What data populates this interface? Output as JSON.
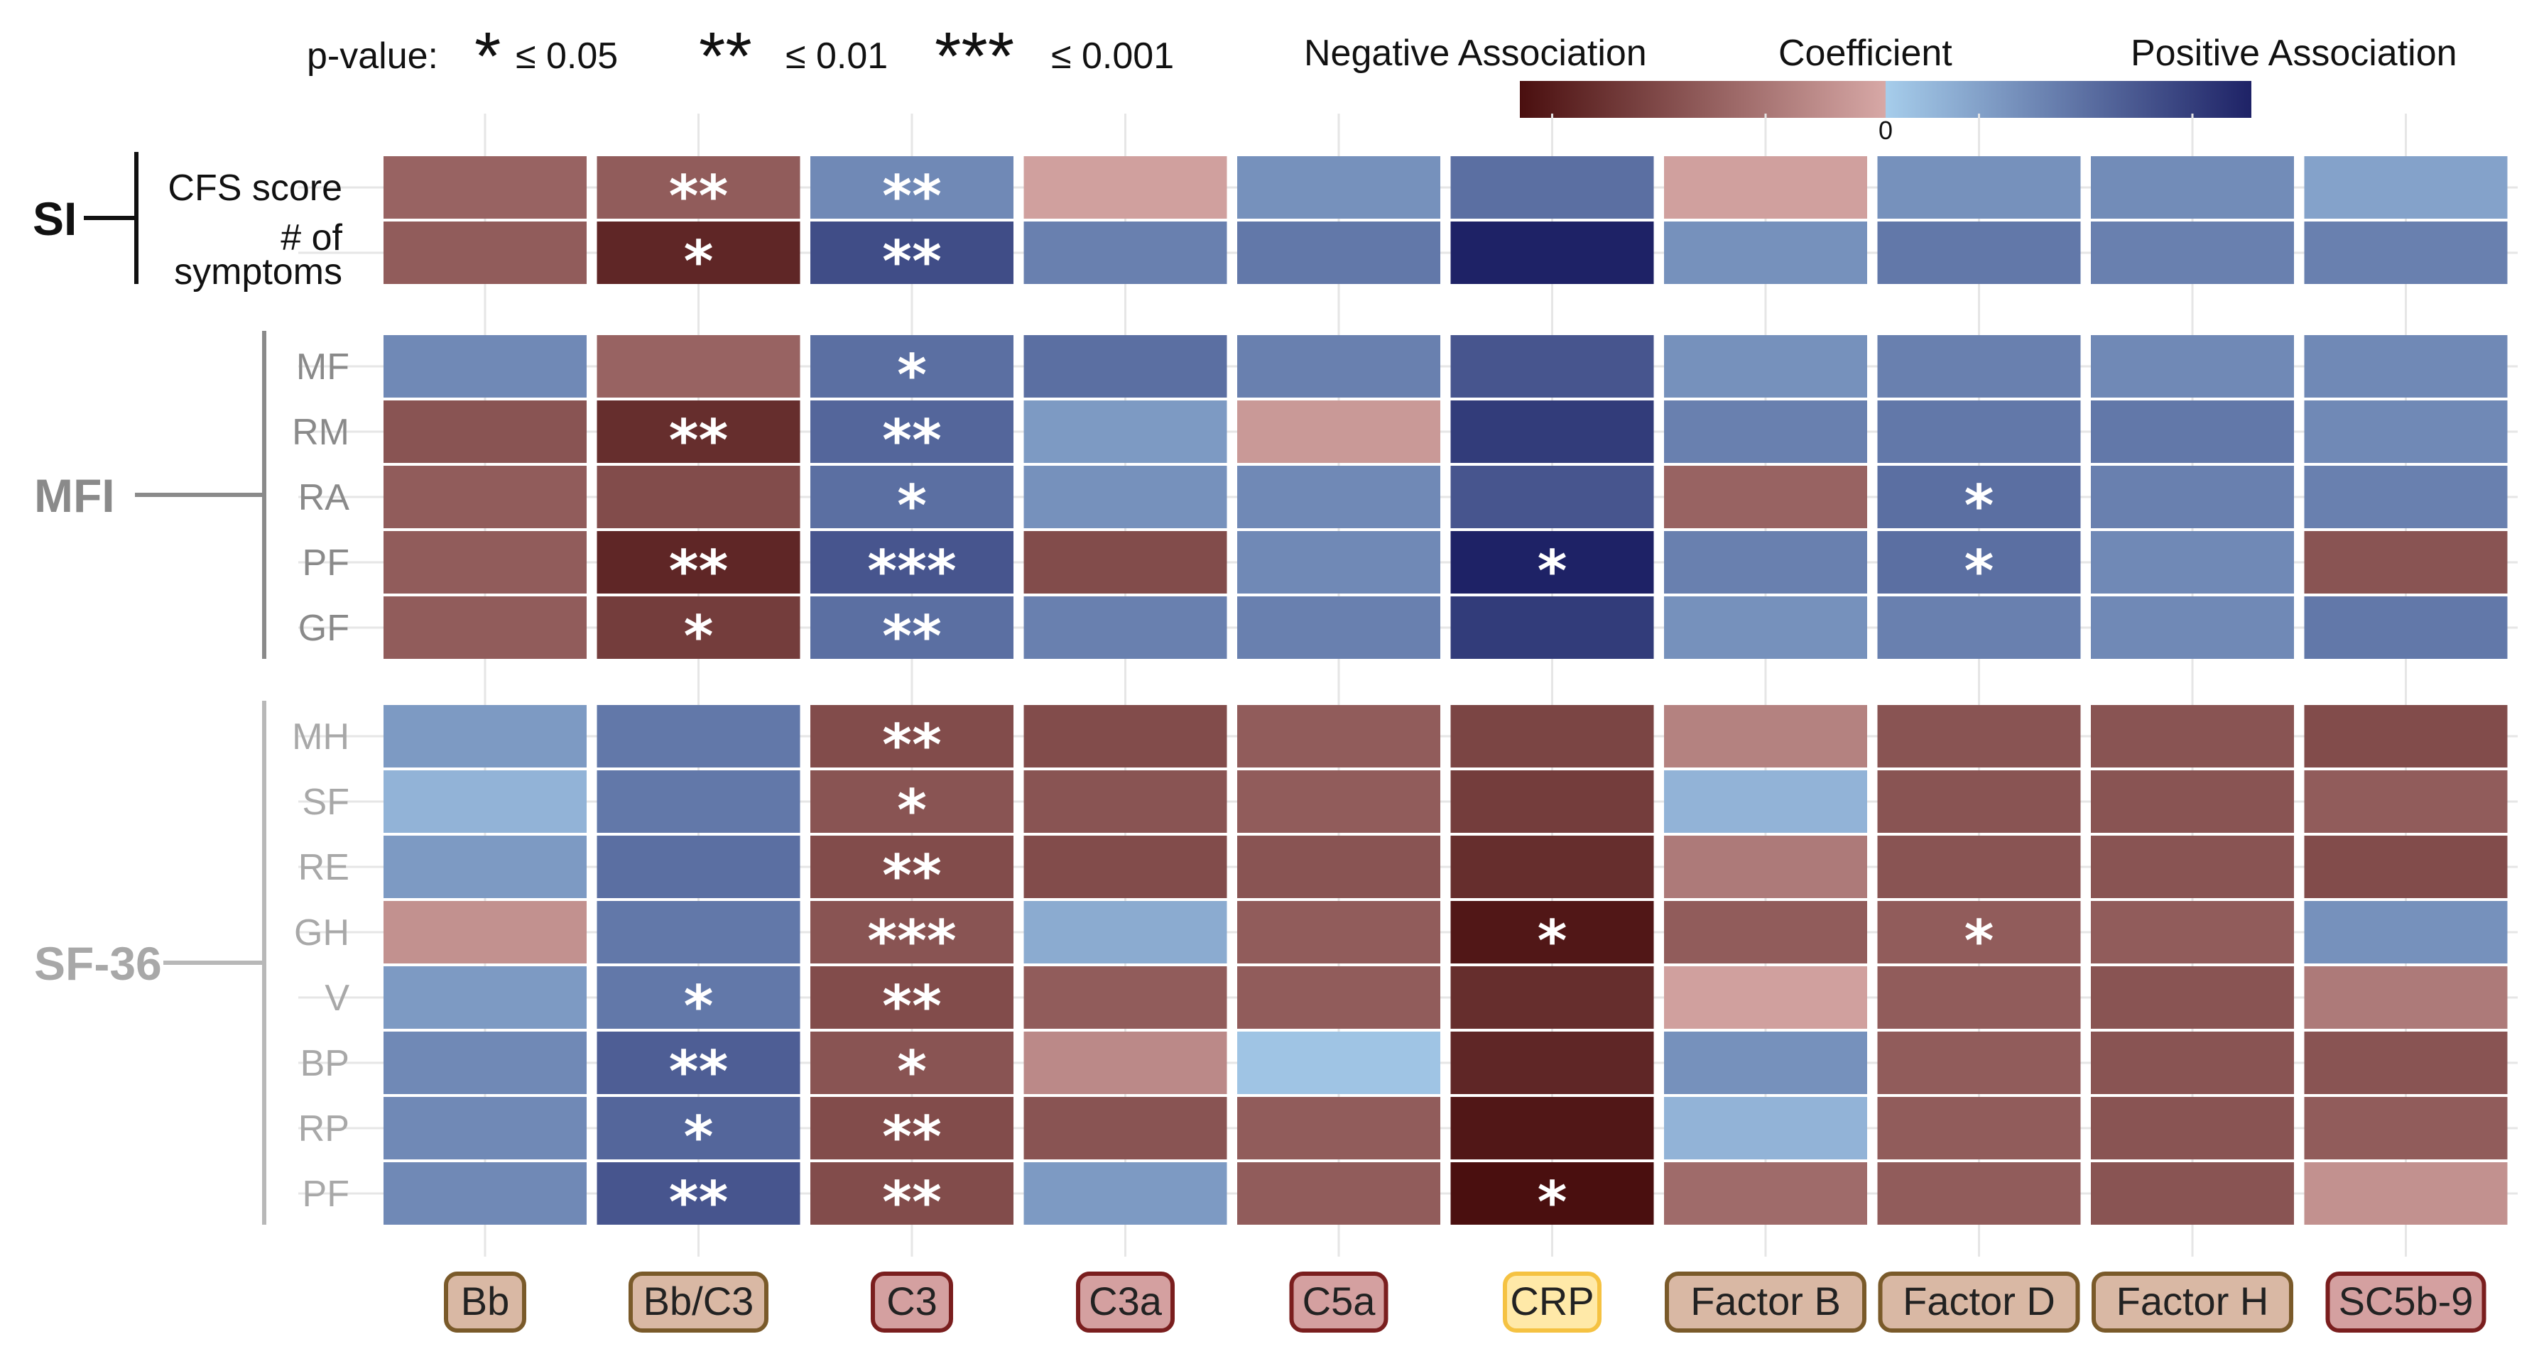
{
  "chart_data": {
    "type": "heatmap",
    "columns": [
      "Bb",
      "Bb/C3",
      "C3",
      "C3a",
      "C5a",
      "CRP",
      "Factor B",
      "Factor D",
      "Factor H",
      "SC5b-9"
    ],
    "column_badge_colors": [
      "#D9B8A4",
      "#D9B8A4",
      "#D4A0A0",
      "#D4A0A0",
      "#D4A0A0",
      "#FFE9A8",
      "#D9B8A4",
      "#D9B8A4",
      "#D9B8A4",
      "#D4A0A0"
    ],
    "column_badge_borders": [
      "#7A5A2A",
      "#7A5A2A",
      "#7A1E1E",
      "#7A1E1E",
      "#7A1E1E",
      "#F5C242",
      "#7A5A2A",
      "#7A5A2A",
      "#7A5A2A",
      "#7A1E1E"
    ],
    "groups": [
      {
        "name": "SI",
        "text_color": "#111111",
        "line_color": "#111111",
        "rows": [
          "CFS score",
          "# of symptoms"
        ],
        "values": [
          [
            -0.45,
            -0.5,
            0.4,
            -0.05,
            0.35,
            0.55,
            -0.05,
            0.35,
            0.38,
            0.25
          ],
          [
            -0.5,
            -0.85,
            0.75,
            0.45,
            0.5,
            1.0,
            0.35,
            0.5,
            0.45,
            0.45
          ]
        ],
        "significance": [
          [
            "",
            "**",
            "**",
            "",
            "",
            "",
            "",
            "",
            "",
            ""
          ],
          [
            "",
            "*",
            "**",
            "",
            "",
            "",
            "",
            "",
            "",
            ""
          ]
        ]
      },
      {
        "name": "MFI",
        "text_color": "#8a8a8a",
        "line_color": "#8a8a8a",
        "rows": [
          "MF",
          "RM",
          "RA",
          "PF",
          "GF"
        ],
        "values": [
          [
            0.4,
            -0.45,
            0.55,
            0.55,
            0.45,
            0.7,
            0.35,
            0.45,
            0.4,
            0.4
          ],
          [
            -0.55,
            -0.8,
            0.6,
            0.3,
            -0.1,
            0.85,
            0.45,
            0.5,
            0.5,
            0.4
          ],
          [
            -0.5,
            -0.6,
            0.55,
            0.35,
            0.4,
            0.7,
            -0.45,
            0.55,
            0.45,
            0.45
          ],
          [
            -0.5,
            -0.85,
            0.7,
            -0.6,
            0.4,
            1.0,
            0.45,
            0.55,
            0.4,
            -0.55
          ],
          [
            -0.5,
            -0.7,
            0.55,
            0.45,
            0.45,
            0.85,
            0.35,
            0.45,
            0.4,
            0.5
          ]
        ],
        "significance": [
          [
            "",
            "",
            "*",
            "",
            "",
            "",
            "",
            "",
            "",
            ""
          ],
          [
            "",
            "**",
            "**",
            "",
            "",
            "",
            "",
            "",
            "",
            ""
          ],
          [
            "",
            "",
            "*",
            "",
            "",
            "",
            "",
            "*",
            "",
            ""
          ],
          [
            "",
            "**",
            "***",
            "",
            "",
            "*",
            "",
            "*",
            "",
            ""
          ],
          [
            "",
            "*",
            "**",
            "",
            "",
            "",
            "",
            "",
            "",
            ""
          ]
        ]
      },
      {
        "name": "SF-36",
        "text_color": "#a8a8a8",
        "line_color": "#b8b8b8",
        "rows": [
          "MH",
          "SF",
          "RE",
          "GH",
          "V",
          "BP",
          "RP",
          "PF"
        ],
        "values": [
          [
            0.3,
            0.5,
            -0.6,
            -0.6,
            -0.5,
            -0.65,
            -0.25,
            -0.55,
            -0.55,
            -0.6
          ],
          [
            0.15,
            0.5,
            -0.55,
            -0.55,
            -0.5,
            -0.7,
            0.15,
            -0.55,
            -0.55,
            -0.5
          ],
          [
            0.3,
            0.55,
            -0.6,
            -0.6,
            -0.55,
            -0.8,
            -0.3,
            -0.55,
            -0.55,
            -0.6
          ],
          [
            -0.15,
            0.5,
            -0.55,
            0.2,
            -0.5,
            -0.95,
            -0.5,
            -0.5,
            -0.5,
            0.35
          ],
          [
            0.3,
            0.5,
            -0.6,
            -0.5,
            -0.5,
            -0.8,
            -0.05,
            -0.5,
            -0.55,
            -0.3
          ],
          [
            0.4,
            0.65,
            -0.55,
            -0.2,
            0.05,
            -0.85,
            0.35,
            -0.5,
            -0.55,
            -0.55
          ],
          [
            0.4,
            0.6,
            -0.6,
            -0.55,
            -0.5,
            -0.95,
            0.15,
            -0.5,
            -0.55,
            -0.5
          ],
          [
            0.4,
            0.7,
            -0.6,
            0.3,
            -0.5,
            -1.0,
            -0.4,
            -0.5,
            -0.55,
            -0.15
          ]
        ],
        "significance": [
          [
            "",
            "",
            "**",
            "",
            "",
            "",
            "",
            "",
            "",
            ""
          ],
          [
            "",
            "",
            "*",
            "",
            "",
            "",
            "",
            "",
            "",
            ""
          ],
          [
            "",
            "",
            "**",
            "",
            "",
            "",
            "",
            "",
            "",
            ""
          ],
          [
            "",
            "",
            "***",
            "",
            "",
            "*",
            "",
            "*",
            "",
            ""
          ],
          [
            "",
            "*",
            "**",
            "",
            "",
            "",
            "",
            "",
            "",
            ""
          ],
          [
            "",
            "**",
            "*",
            "",
            "",
            "",
            "",
            "",
            "",
            ""
          ],
          [
            "",
            "*",
            "**",
            "",
            "",
            "",
            "",
            "",
            "",
            ""
          ],
          [
            "",
            "**",
            "**",
            "",
            "",
            "*",
            "",
            "",
            "",
            ""
          ]
        ]
      }
    ],
    "colorbar": {
      "title": "Coefficient",
      "left_label": "Negative Association",
      "right_label": "Positive Association",
      "zero_label": "0",
      "range": [
        -1,
        1
      ],
      "negative_colors": [
        "#4A0F0F",
        "#D7A8A6"
      ],
      "positive_colors": [
        "#A6CDEB",
        "#1E2266"
      ]
    },
    "pvalue_legend": {
      "label": "p-value:",
      "items": [
        {
          "stars": "*",
          "threshold": "≤ 0.05"
        },
        {
          "stars": "**",
          "threshold": "≤ 0.01"
        },
        {
          "stars": "***",
          "threshold": "≤ 0.001"
        }
      ]
    }
  }
}
